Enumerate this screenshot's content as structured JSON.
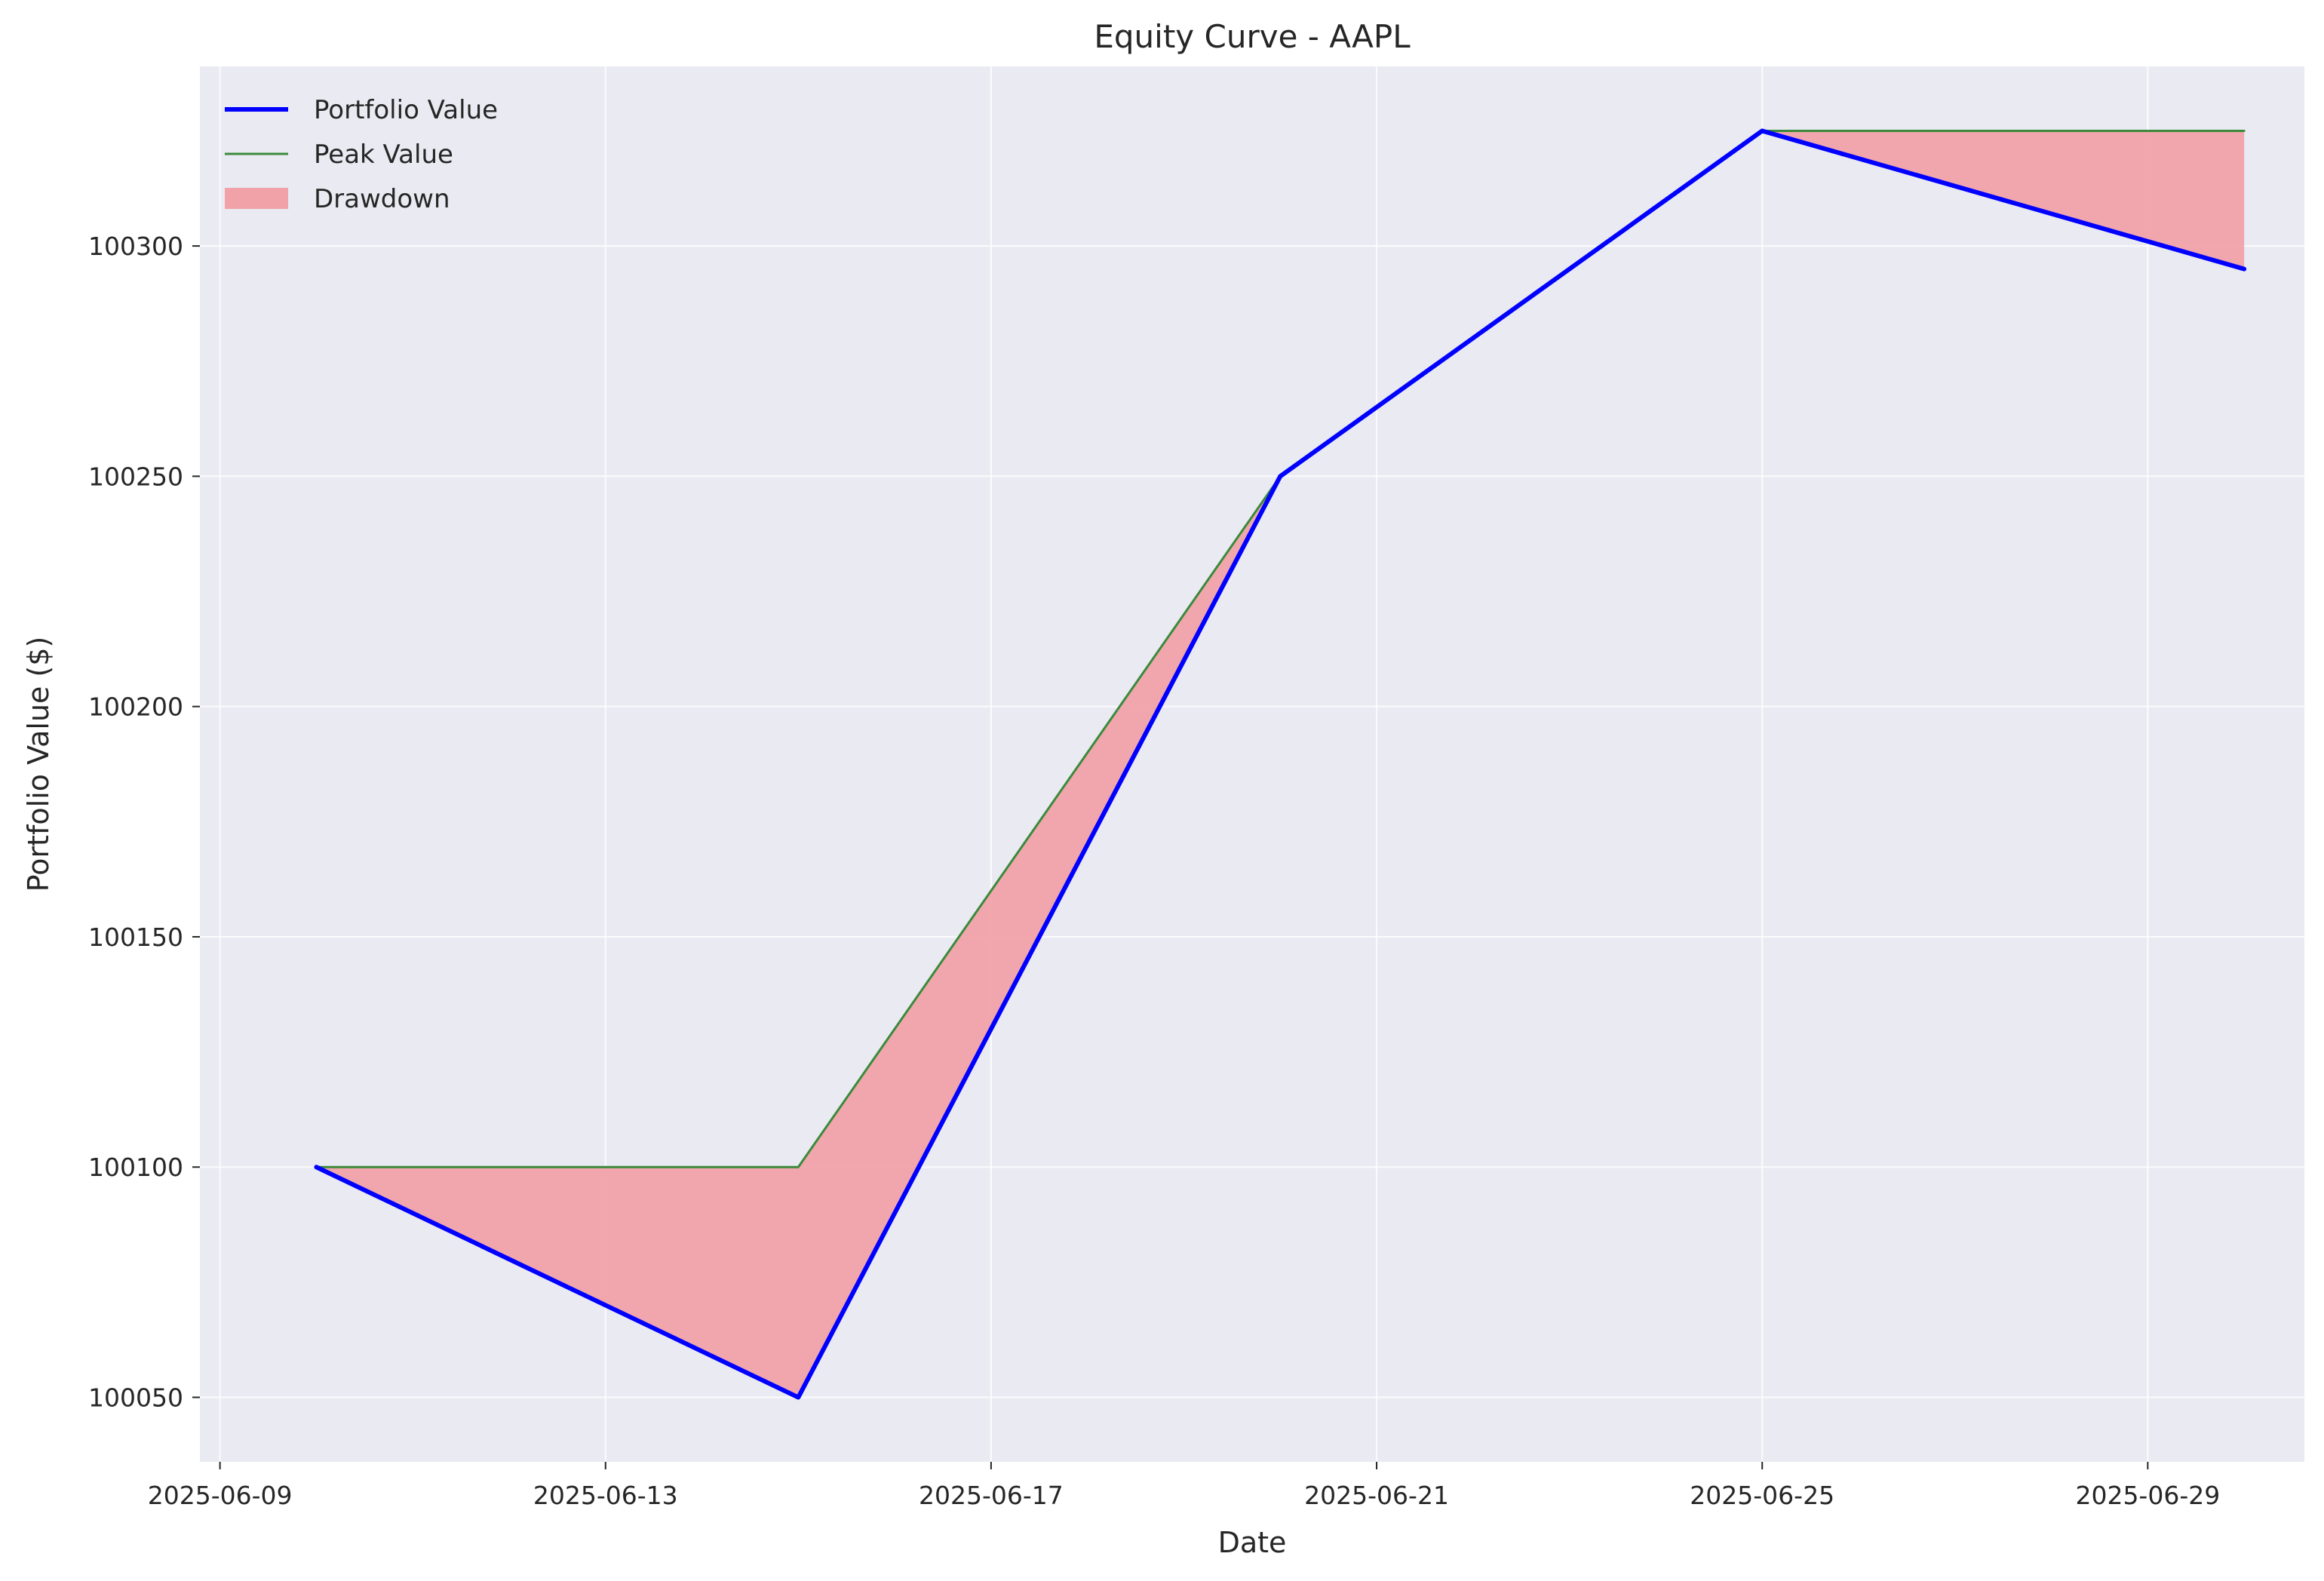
{
  "chart_data": {
    "type": "line",
    "title": "Equity Curve - AAPL",
    "xlabel": "Date",
    "ylabel": "Portfolio Value ($)",
    "x_ticks": [
      "2025-06-09",
      "2025-06-13",
      "2025-06-17",
      "2025-06-21",
      "2025-06-25",
      "2025-06-29"
    ],
    "y_ticks": [
      100050,
      100100,
      100150,
      100200,
      100250,
      100300
    ],
    "xlim": [
      "2025-06-08T19:00",
      "2025-06-30T15:00"
    ],
    "ylim": [
      100036,
      100339
    ],
    "grid": true,
    "legend_position": "top-left",
    "x": [
      "2025-06-10",
      "2025-06-15",
      "2025-06-20",
      "2025-06-25",
      "2025-06-30"
    ],
    "series": [
      {
        "name": "Portfolio Value",
        "kind": "line",
        "color": "#0000ff",
        "values": [
          100100,
          100050,
          100250,
          100325,
          100295
        ]
      },
      {
        "name": "Peak Value",
        "kind": "line",
        "color": "#3a8a3a",
        "values": [
          100100,
          100100,
          100250,
          100325,
          100325
        ]
      },
      {
        "name": "Drawdown",
        "kind": "fill_between",
        "color": "#f0a2a8",
        "between": [
          "Portfolio Value",
          "Peak Value"
        ]
      }
    ],
    "background_color": "#eaeaf2"
  }
}
